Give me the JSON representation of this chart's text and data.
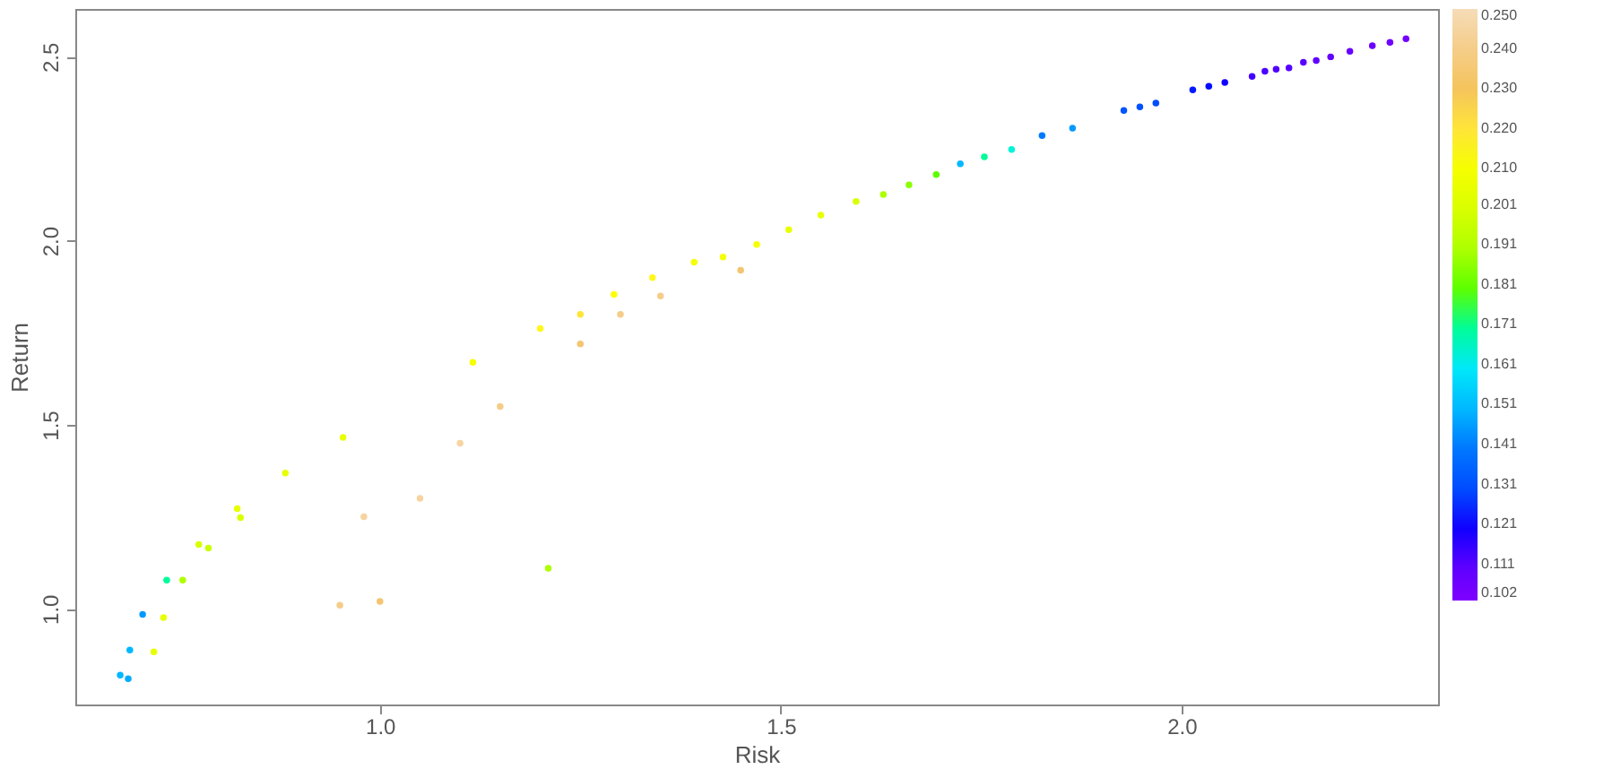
{
  "chart_data": {
    "type": "scatter",
    "xlabel": "Risk",
    "ylabel": "Return",
    "xlim": [
      0.62,
      2.32
    ],
    "ylim": [
      0.74,
      2.63
    ],
    "xticks": [
      {
        "value": 1,
        "label": "1.0"
      },
      {
        "value": 1.5,
        "label": "1.5"
      },
      {
        "value": 2,
        "label": "2.0"
      }
    ],
    "yticks": [
      {
        "value": 1,
        "label": "1.0"
      },
      {
        "value": 1.5,
        "label": "1.5"
      },
      {
        "value": 2,
        "label": "2.0"
      },
      {
        "value": 2.5,
        "label": "2.5"
      }
    ],
    "grid": false,
    "clim": [
      0.102,
      0.25
    ],
    "cticks": [
      {
        "value": 0.102,
        "label": "0.102"
      },
      {
        "value": 0.111,
        "label": "0.111"
      },
      {
        "value": 0.121,
        "label": "0.121"
      },
      {
        "value": 0.131,
        "label": "0.131"
      },
      {
        "value": 0.141,
        "label": "0.141"
      },
      {
        "value": 0.151,
        "label": "0.151"
      },
      {
        "value": 0.161,
        "label": "0.161"
      },
      {
        "value": 0.171,
        "label": "0.171"
      },
      {
        "value": 0.181,
        "label": "0.181"
      },
      {
        "value": 0.191,
        "label": "0.191"
      },
      {
        "value": 0.201,
        "label": "0.201"
      },
      {
        "value": 0.21,
        "label": "0.210"
      },
      {
        "value": 0.22,
        "label": "0.220"
      },
      {
        "value": 0.23,
        "label": "0.230"
      },
      {
        "value": 0.24,
        "label": "0.240"
      },
      {
        "value": 0.25,
        "label": "0.250"
      }
    ],
    "x": [
      2.28,
      2.26,
      2.238,
      2.21,
      2.186,
      2.168,
      2.152,
      2.134,
      2.118,
      2.104,
      2.088,
      2.054,
      2.034,
      2.014,
      1.968,
      1.948,
      1.928,
      1.864,
      1.826,
      1.788,
      1.754,
      1.724,
      1.694,
      1.66,
      1.628,
      1.594,
      1.55,
      1.51,
      1.47,
      1.428,
      1.392,
      1.34,
      1.292,
      1.25,
      1.2,
      1.116,
      0.954,
      0.882,
      0.822,
      0.826,
      0.774,
      0.786,
      0.734,
      0.754,
      0.73,
      0.704,
      0.688,
      0.718,
      0.686,
      0.676,
      1.0,
      0.95,
      1.05,
      1.1,
      1.15,
      1.25,
      1.3,
      1.35,
      1.45,
      0.98,
      1.21
    ],
    "values": [
      2.549,
      2.539,
      2.53,
      2.515,
      2.5,
      2.49,
      2.485,
      2.47,
      2.466,
      2.461,
      2.447,
      2.43,
      2.42,
      2.41,
      2.374,
      2.364,
      2.354,
      2.306,
      2.286,
      2.248,
      2.228,
      2.209,
      2.18,
      2.152,
      2.126,
      2.107,
      2.07,
      2.03,
      1.99,
      1.956,
      1.942,
      1.9,
      1.854,
      1.8,
      1.762,
      1.67,
      1.466,
      1.369,
      1.272,
      1.248,
      1.175,
      1.165,
      1.078,
      1.078,
      0.976,
      0.985,
      0.888,
      0.883,
      0.81,
      0.82,
      1.02,
      1.01,
      1.3,
      1.45,
      1.55,
      1.72,
      1.8,
      1.85,
      1.92,
      1.25,
      1.11
    ],
    "cvalues": [
      0.105,
      0.106,
      0.107,
      0.108,
      0.109,
      0.11,
      0.111,
      0.112,
      0.113,
      0.114,
      0.115,
      0.12,
      0.121,
      0.122,
      0.13,
      0.131,
      0.132,
      0.145,
      0.14,
      0.165,
      0.17,
      0.15,
      0.18,
      0.185,
      0.19,
      0.2,
      0.205,
      0.205,
      0.21,
      0.21,
      0.21,
      0.215,
      0.212,
      0.22,
      0.215,
      0.21,
      0.205,
      0.205,
      0.205,
      0.2,
      0.2,
      0.195,
      0.17,
      0.19,
      0.205,
      0.145,
      0.15,
      0.205,
      0.148,
      0.15,
      0.235,
      0.24,
      0.245,
      0.245,
      0.24,
      0.235,
      0.24,
      0.24,
      0.235,
      0.245,
      0.19
    ]
  }
}
